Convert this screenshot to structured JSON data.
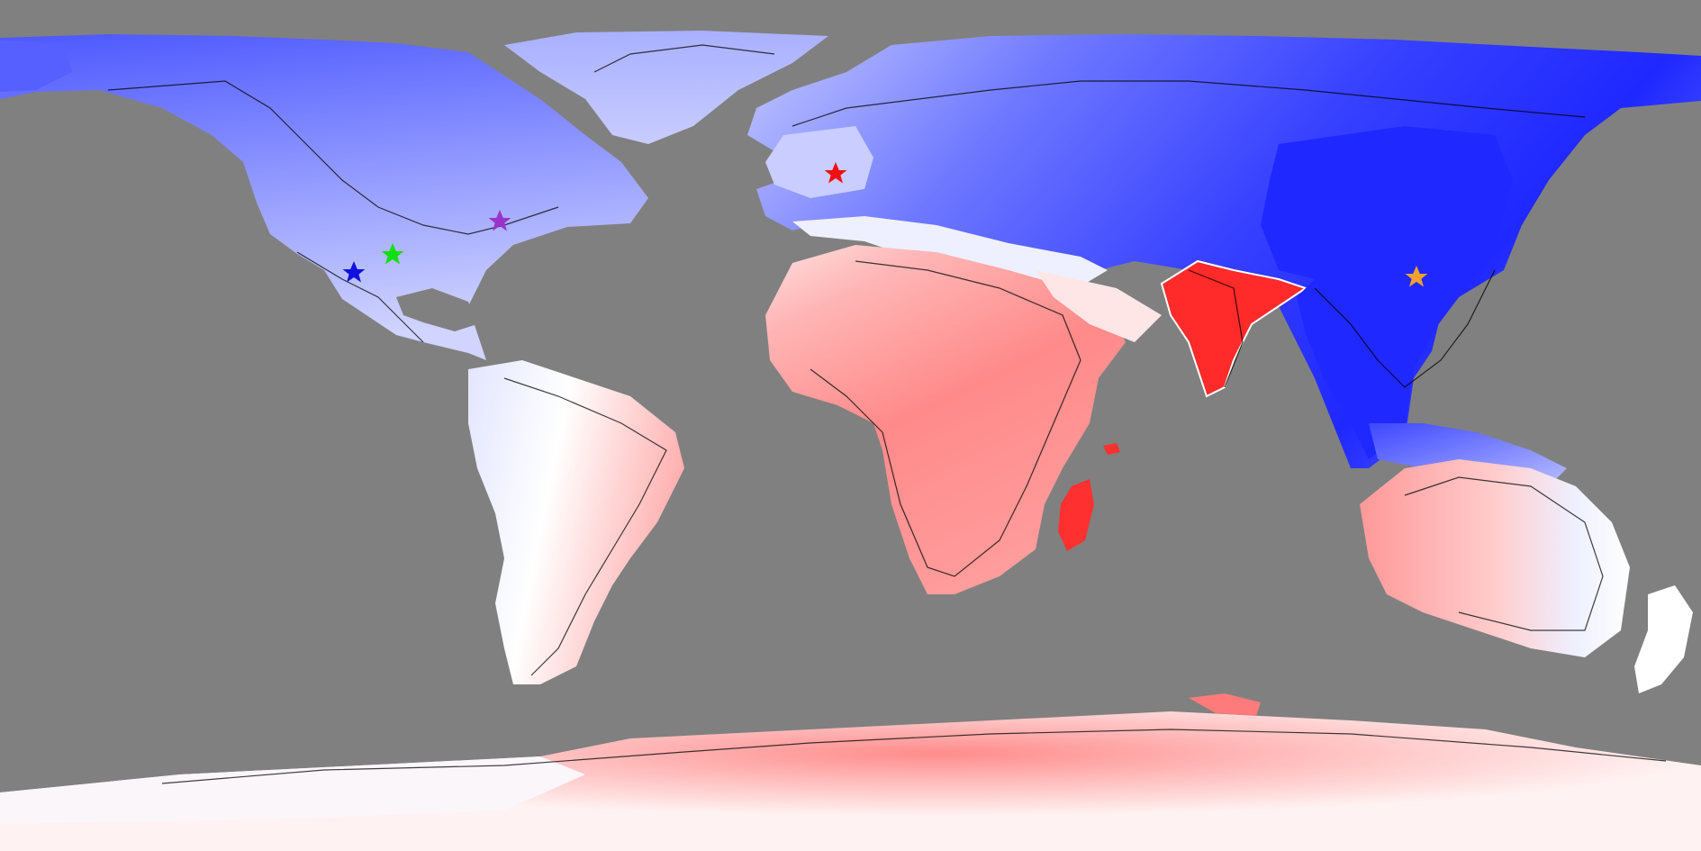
{
  "map": {
    "projection": "equirectangular",
    "ocean_color": "#808080",
    "coastline_color": "#000000",
    "colormap": {
      "deep_blue": "#1f26ff",
      "blue": "#5560ff",
      "light_blue": "#a9b0ff",
      "pale_blue": "#e3e6ff",
      "white": "#ffffff",
      "pale_red": "#ffd6d6",
      "light_red": "#ff9f9f",
      "red": "#ff7070",
      "deep_red": "#ff2a2a"
    },
    "markers": [
      {
        "name": "blue-star",
        "color": "#1010e0"
      },
      {
        "name": "green-star",
        "color": "#10e010"
      },
      {
        "name": "purple-star",
        "color": "#9a33cc"
      },
      {
        "name": "red-star",
        "color": "#ee1111"
      },
      {
        "name": "orange-star",
        "color": "#f0a030"
      }
    ]
  }
}
